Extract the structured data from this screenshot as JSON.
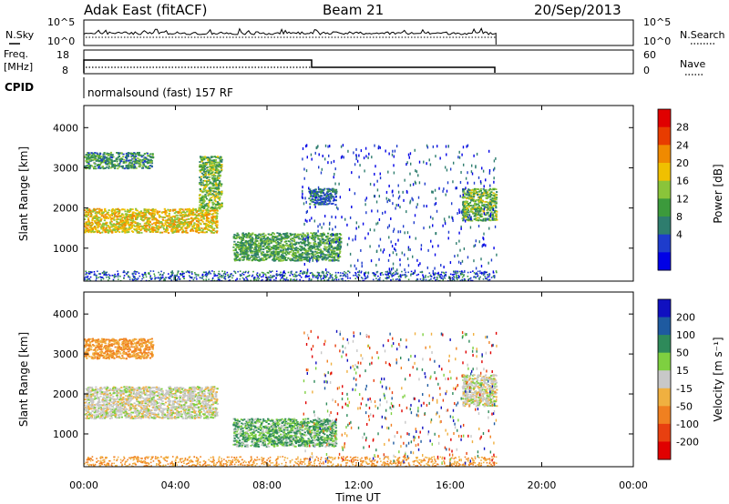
{
  "header": {
    "station": "Adak East (fitACF)",
    "beam": "Beam 21",
    "date": "20/Sep/2013"
  },
  "panels": {
    "nsky": {
      "label": "N.Sky",
      "left_ticks": [
        "10^5",
        "10^0"
      ],
      "right_ticks": [
        "10^5",
        "10^0"
      ],
      "right_label": "N.Search"
    },
    "freq": {
      "label_line1": "Freq.",
      "label_line2": "[MHz]",
      "left_ticks": [
        "18",
        "8"
      ],
      "right_ticks": [
        "60",
        "0"
      ],
      "right_label": "Nave"
    },
    "cpid": {
      "label": "CPID",
      "text": "normalsound (fast) 157 RF"
    }
  },
  "colors": {
    "power_scale": [
      "#0000e6",
      "#1e3ccc",
      "#2e7d6e",
      "#3c9a3c",
      "#8ac43a",
      "#f0c000",
      "#f08a00",
      "#e83c00",
      "#e00000"
    ],
    "velocity_scale": [
      "#1010c0",
      "#1e5aa0",
      "#2e8a5a",
      "#7ed040",
      "#c8c8c8",
      "#f0b040",
      "#f08020",
      "#e84010",
      "#e00000"
    ]
  },
  "chart_data": [
    {
      "type": "heatmap",
      "title": "",
      "xlabel": "",
      "ylabel": "Slant Range [km]",
      "y_ticks": [
        "1000",
        "2000",
        "3000",
        "4000"
      ],
      "colorbar_label": "Power [dB]",
      "colorbar_ticks": [
        "4",
        "8",
        "12",
        "16",
        "20",
        "24",
        "28"
      ],
      "xlim": [
        "00:00",
        "24:00"
      ],
      "ylim": [
        180,
        4550
      ],
      "regions": [
        {
          "t_start_h": 0.0,
          "t_end_h": 5.8,
          "range_km": [
            1400,
            2000
          ],
          "power_db": 20
        },
        {
          "t_start_h": 0.0,
          "t_end_h": 3.0,
          "range_km": [
            3000,
            3400
          ],
          "power_db": 10
        },
        {
          "t_start_h": 5.0,
          "t_end_h": 6.0,
          "range_km": [
            2000,
            3300
          ],
          "power_db": 14
        },
        {
          "t_start_h": 6.5,
          "t_end_h": 11.2,
          "range_km": [
            700,
            1400
          ],
          "power_db": 12
        },
        {
          "t_start_h": 9.8,
          "t_end_h": 11.0,
          "range_km": [
            2100,
            2500
          ],
          "power_db": 6
        },
        {
          "t_start_h": 16.5,
          "t_end_h": 18.0,
          "range_km": [
            1700,
            2500
          ],
          "power_db": 14
        }
      ]
    },
    {
      "type": "heatmap",
      "title": "",
      "xlabel": "Time UT",
      "ylabel": "Slant Range [km]",
      "y_ticks": [
        "1000",
        "2000",
        "3000",
        "4000"
      ],
      "x_ticks": [
        "00:00",
        "04:00",
        "08:00",
        "12:00",
        "16:00",
        "20:00",
        "00:00"
      ],
      "colorbar_label": "Velocity [m s⁻¹]",
      "colorbar_ticks": [
        "200",
        "100",
        "50",
        "15",
        "-15",
        "-50",
        "-100",
        "-200"
      ],
      "xlim": [
        "00:00",
        "24:00"
      ],
      "ylim": [
        180,
        4550
      ],
      "regions": [
        {
          "t_start_h": 0.0,
          "t_end_h": 5.8,
          "range_km": [
            1400,
            2200
          ],
          "velocity_ms": 0
        },
        {
          "t_start_h": 0.0,
          "t_end_h": 3.0,
          "range_km": [
            2900,
            3400
          ],
          "velocity_ms": -50
        },
        {
          "t_start_h": 6.5,
          "t_end_h": 11.0,
          "range_km": [
            700,
            1400
          ],
          "velocity_ms": 30
        },
        {
          "t_start_h": 16.5,
          "t_end_h": 18.0,
          "range_km": [
            1700,
            2500
          ],
          "velocity_ms": 0
        }
      ]
    }
  ]
}
